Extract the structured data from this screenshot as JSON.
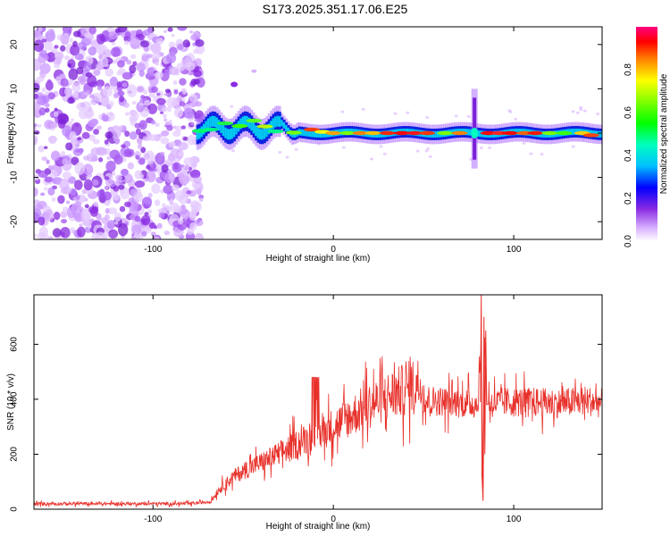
{
  "title": "S173.2025.351.17.06.E25",
  "chart_data": [
    {
      "type": "heatmap",
      "name": "spectrogram",
      "xlabel": "Height of straight line (km)",
      "ylabel": "Frequency (Hz)",
      "xlim": [
        -166,
        149
      ],
      "ylim": [
        -24,
        24
      ],
      "xticks": [
        -100,
        0,
        100
      ],
      "xtick_labels": [
        "-100",
        "0",
        "100"
      ],
      "yticks": [
        -20,
        -10,
        0,
        10,
        20
      ],
      "ytick_labels": [
        "-20",
        "-10",
        "0",
        "10",
        "20"
      ],
      "colorbar": {
        "label": "Normalized spectral amplitude",
        "range": [
          0,
          1
        ],
        "ticks": [
          0.0,
          0.2,
          0.4,
          0.6,
          0.8
        ],
        "tick_labels": [
          "0.0",
          "0.2",
          "0.4",
          "0.6",
          "0.8"
        ]
      },
      "features": {
        "noise_region_x": [
          -166,
          -76
        ],
        "ridge_start_x": -76,
        "ridge_frequency_hz": 0,
        "spike_x": 78,
        "spike_freq_range": [
          -8,
          10
        ]
      }
    },
    {
      "type": "line",
      "name": "snr",
      "xlabel": "Height of straight line (km)",
      "ylabel": "SNR (10 * v/v)",
      "xlim": [
        -166,
        149
      ],
      "ylim": [
        0,
        780
      ],
      "xticks": [
        -100,
        0,
        100
      ],
      "xtick_labels": [
        "-100",
        "0",
        "100"
      ],
      "yticks": [
        0,
        200,
        400,
        600
      ],
      "ytick_labels": [
        "0",
        "200",
        "400",
        "600"
      ],
      "color": "#e8312b",
      "series": [
        {
          "name": "SNR",
          "x": [
            -166,
            -140,
            -110,
            -80,
            -68,
            -63,
            -55,
            -45,
            -35,
            -25,
            -15,
            -5,
            5,
            15,
            25,
            32,
            38,
            44,
            48,
            50,
            55,
            65,
            75,
            80,
            82,
            83,
            84,
            85,
            87,
            95,
            110,
            125,
            140,
            149
          ],
          "values": [
            20,
            20,
            20,
            20,
            28,
            75,
            120,
            155,
            185,
            220,
            255,
            285,
            320,
            360,
            395,
            415,
            430,
            450,
            460,
            400,
            395,
            390,
            385,
            380,
            600,
            30,
            640,
            380,
            385,
            390,
            390,
            385,
            395,
            385
          ]
        }
      ],
      "annotations": [
        {
          "x": -9,
          "y": 490,
          "text": ""
        }
      ]
    }
  ],
  "colors": {
    "line": "#e8312b",
    "noise": "#8a2be2"
  }
}
